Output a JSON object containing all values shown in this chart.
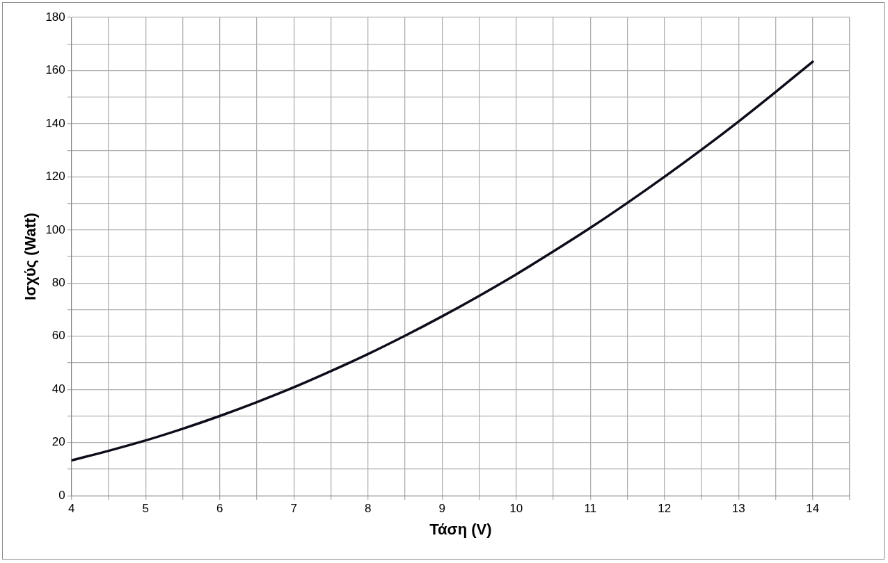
{
  "chart_data": {
    "type": "line",
    "xlabel": "Τάση (V)",
    "ylabel": "Ισχύς (Watt)",
    "x": [
      4,
      4.5,
      5,
      5.5,
      6,
      6.5,
      7,
      7.5,
      8,
      8.5,
      9,
      9.5,
      10,
      10.5,
      11,
      11.5,
      12,
      12.5,
      13,
      13.5,
      14
    ],
    "series": [
      {
        "color": "#0d0d1a",
        "values": [
          13.3,
          16.9,
          20.8,
          25.2,
          30,
          35.2,
          40.8,
          46.9,
          53.3,
          60.2,
          67.5,
          75.2,
          83.3,
          91.9,
          100.8,
          110.2,
          120,
          130.2,
          140.8,
          151.9,
          163.3
        ]
      }
    ],
    "xlim": [
      4,
      14.5
    ],
    "xticks": [
      4,
      {
        "value": 4.5,
        "label": null
      },
      5,
      {
        "value": 5.5,
        "label": null
      },
      6,
      {
        "value": 6.5,
        "label": null
      },
      7,
      {
        "value": 7.5,
        "label": null
      },
      8,
      {
        "value": 8.5,
        "label": null
      },
      9,
      {
        "value": 9.5,
        "label": null
      },
      10,
      {
        "value": 10.5,
        "label": null
      },
      11,
      {
        "value": 11.5,
        "label": null
      },
      12,
      {
        "value": 12.5,
        "label": null
      },
      13,
      {
        "value": 13.5,
        "label": null
      },
      14,
      {
        "value": 14.5,
        "label": null
      }
    ],
    "ylim": [
      0,
      180
    ],
    "yticks": [
      0,
      {
        "value": 10,
        "label": null
      },
      20,
      {
        "value": 30,
        "label": null
      },
      40,
      {
        "value": 50,
        "label": null
      },
      60,
      {
        "value": 70,
        "label": null
      },
      80,
      {
        "value": 90,
        "label": null
      },
      100,
      {
        "value": 110,
        "label": null
      },
      120,
      {
        "value": 130,
        "label": null
      },
      140,
      {
        "value": 150,
        "label": null
      },
      160,
      {
        "value": 170,
        "label": null
      },
      180
    ],
    "grid": true,
    "legend": false,
    "marker": "none",
    "line_style": "solid"
  }
}
